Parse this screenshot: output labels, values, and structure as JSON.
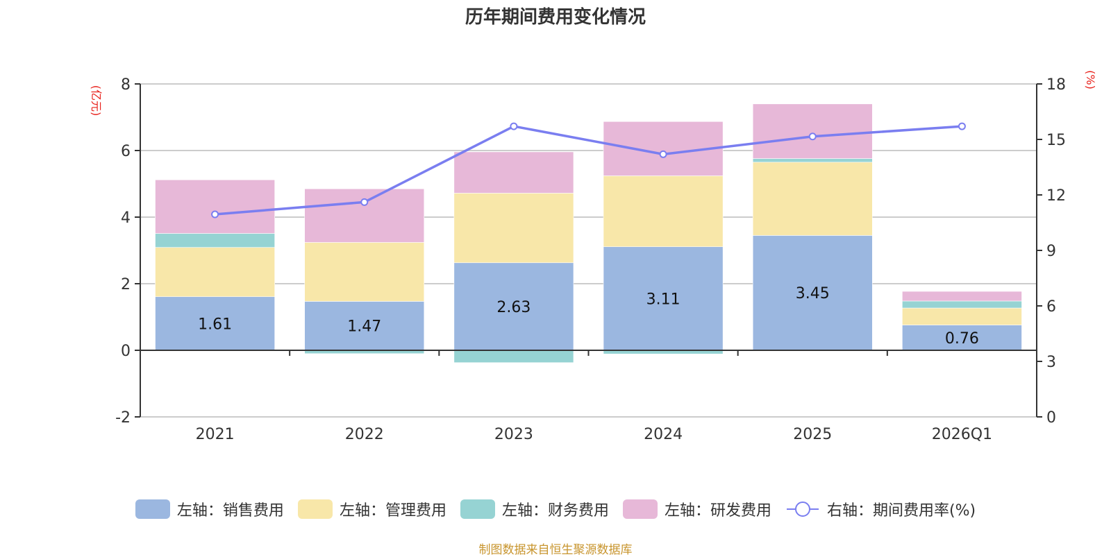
{
  "title": "历年期间费用变化情况",
  "source": "制图数据来自恒生聚源数据库",
  "chart_data": {
    "type": "bar",
    "stacked": true,
    "title": "历年期间费用变化情况",
    "categories": [
      "2021",
      "2022",
      "2023",
      "2024",
      "2025",
      "2026Q1"
    ],
    "left_axis": {
      "label": "(亿元)",
      "range": [
        -2,
        8
      ],
      "ticks": [
        "-2",
        "0",
        "2",
        "4",
        "6",
        "8"
      ]
    },
    "right_axis": {
      "label": "(%)",
      "range": [
        0,
        18
      ],
      "ticks": [
        "0",
        "3",
        "6",
        "9",
        "12",
        "15",
        "18"
      ]
    },
    "grid": true,
    "legend_position": "bottom",
    "series": [
      {
        "name": "左轴：销售费用",
        "type": "bar",
        "axis": "left",
        "color": "#9bb7e0",
        "values": [
          1.61,
          1.47,
          2.63,
          3.11,
          3.45,
          0.76
        ],
        "labels": [
          "1.61",
          "1.47",
          "2.63",
          "3.11",
          "3.45",
          "0.76"
        ]
      },
      {
        "name": "左轴：管理费用",
        "type": "bar",
        "axis": "left",
        "color": "#f8e7a9",
        "values": [
          1.48,
          1.77,
          2.09,
          2.13,
          2.2,
          0.51
        ]
      },
      {
        "name": "左轴：财务费用",
        "type": "bar",
        "axis": "left",
        "color": "#96d3d3",
        "values": [
          0.42,
          -0.1,
          -0.37,
          -0.11,
          0.11,
          0.21
        ]
      },
      {
        "name": "左轴：研发费用",
        "type": "bar",
        "axis": "left",
        "color": "#e7b8d8",
        "values": [
          1.61,
          1.61,
          1.24,
          1.63,
          1.64,
          0.29
        ]
      },
      {
        "name": "右轴：期间费用率(%)",
        "type": "line",
        "axis": "right",
        "color": "#7a7ef0",
        "values": [
          10.95,
          11.61,
          15.71,
          14.2,
          15.16,
          15.71
        ]
      }
    ],
    "axis_label_color": "#e8201a"
  }
}
